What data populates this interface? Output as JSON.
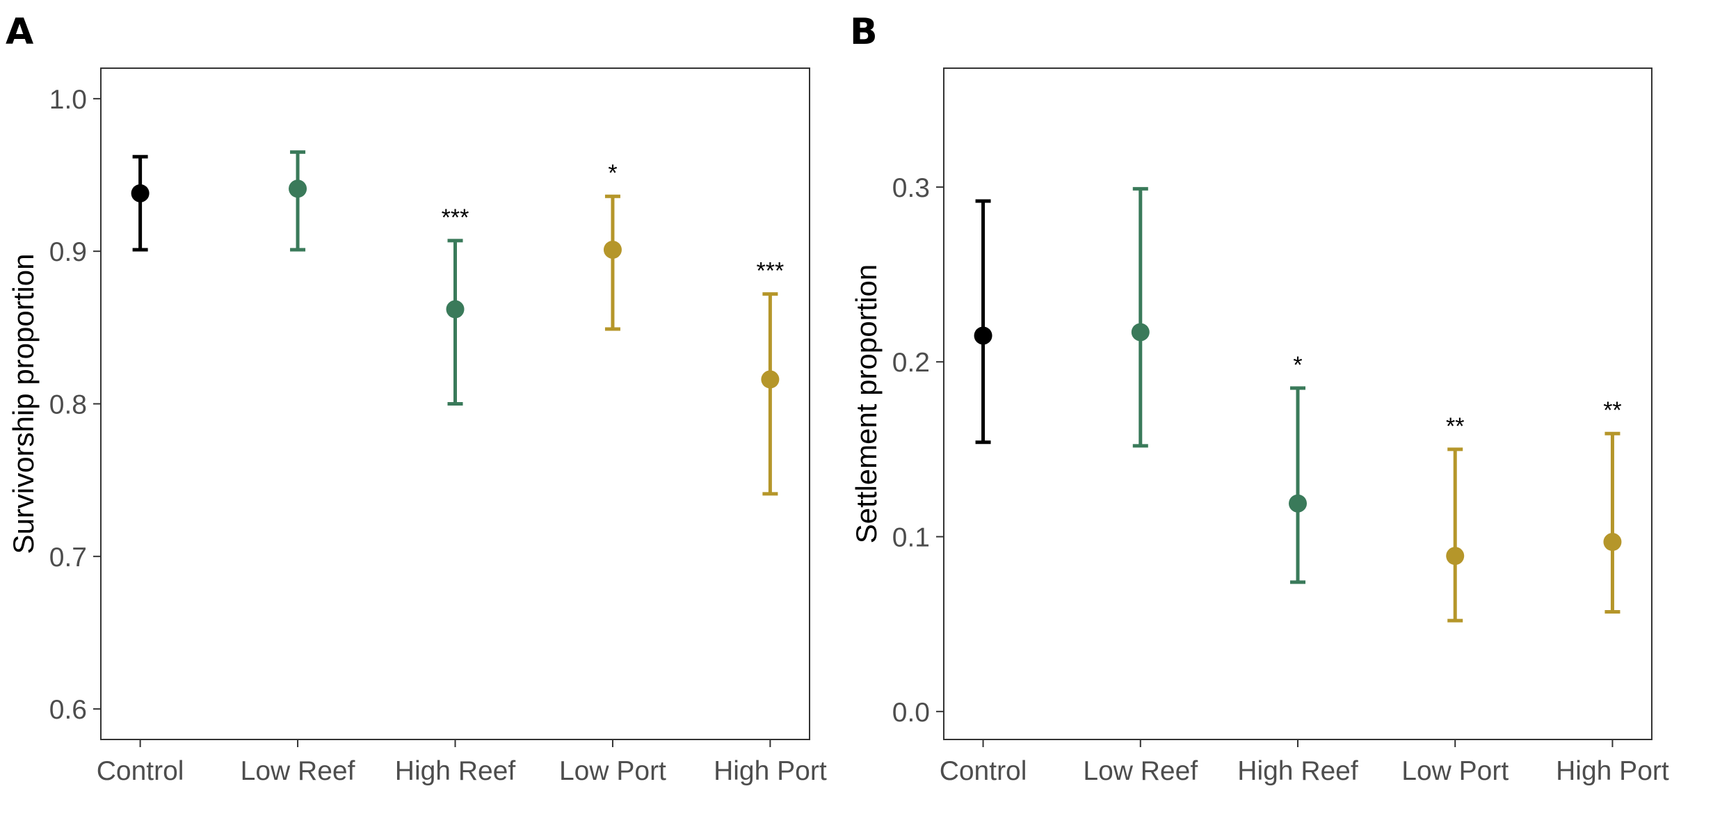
{
  "chart_data": [
    {
      "panel": "A",
      "type": "scatter",
      "ylabel": "Survivorship proportion",
      "xlabel": "",
      "categories": [
        "Control",
        "Low Reef",
        "High Reef",
        "Low Port",
        "High Port"
      ],
      "ylim": [
        0.58,
        1.02
      ],
      "yticks": [
        0.6,
        0.7,
        0.8,
        0.9,
        1.0
      ],
      "ytick_labels": [
        "0.6",
        "0.7",
        "0.8",
        "0.9",
        "1.0"
      ],
      "grid": false,
      "points": [
        {
          "category": "Control",
          "value": 0.938,
          "lower": 0.901,
          "upper": 0.962,
          "sig": "",
          "color": "#000000"
        },
        {
          "category": "Low Reef",
          "value": 0.941,
          "lower": 0.901,
          "upper": 0.965,
          "sig": "",
          "color": "#3a7a5a"
        },
        {
          "category": "High Reef",
          "value": 0.862,
          "lower": 0.8,
          "upper": 0.907,
          "sig": "***",
          "color": "#3a7a5a"
        },
        {
          "category": "Low Port",
          "value": 0.901,
          "lower": 0.849,
          "upper": 0.936,
          "sig": "*",
          "color": "#b5962a"
        },
        {
          "category": "High Port",
          "value": 0.816,
          "lower": 0.741,
          "upper": 0.872,
          "sig": "***",
          "color": "#b5962a"
        }
      ]
    },
    {
      "panel": "B",
      "type": "scatter",
      "ylabel": "Settlement proportion",
      "xlabel": "",
      "categories": [
        "Control",
        "Low Reef",
        "High Reef",
        "Low Port",
        "High Port"
      ],
      "ylim": [
        -0.016,
        0.368
      ],
      "yticks": [
        0.0,
        0.1,
        0.2,
        0.3
      ],
      "ytick_labels": [
        "0.0",
        "0.1",
        "0.2",
        "0.3"
      ],
      "grid": false,
      "points": [
        {
          "category": "Control",
          "value": 0.215,
          "lower": 0.154,
          "upper": 0.292,
          "sig": "",
          "color": "#000000"
        },
        {
          "category": "Low Reef",
          "value": 0.217,
          "lower": 0.152,
          "upper": 0.299,
          "sig": "",
          "color": "#3a7a5a"
        },
        {
          "category": "High Reef",
          "value": 0.119,
          "lower": 0.074,
          "upper": 0.185,
          "sig": "*",
          "color": "#3a7a5a"
        },
        {
          "category": "Low Port",
          "value": 0.089,
          "lower": 0.052,
          "upper": 0.15,
          "sig": "**",
          "color": "#b5962a"
        },
        {
          "category": "High Port",
          "value": 0.097,
          "lower": 0.057,
          "upper": 0.159,
          "sig": "**",
          "color": "#b5962a"
        }
      ]
    }
  ]
}
